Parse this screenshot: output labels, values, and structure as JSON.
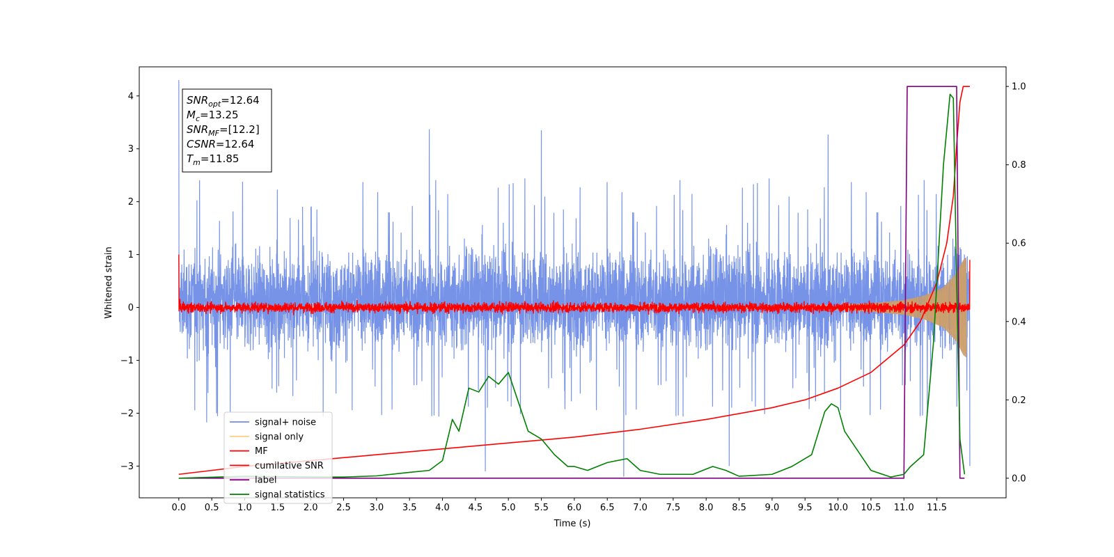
{
  "chart_data": {
    "type": "line",
    "title": "",
    "xlabel": "Time (s)",
    "ylabel": "Whitened strain",
    "xlim": [
      -0.6,
      12.55
    ],
    "ylim": [
      -3.6,
      4.55
    ],
    "y2lim": [
      -0.05,
      1.05
    ],
    "x_ticks": [
      "0.0",
      "0.5",
      "1.0",
      "1.5",
      "2.0",
      "2.5",
      "3.0",
      "3.5",
      "4.0",
      "4.5",
      "5.0",
      "5.5",
      "6.0",
      "6.5",
      "7.0",
      "7.5",
      "8.0",
      "8.5",
      "9.0",
      "9.5",
      "10.0",
      "10.5",
      "11.0",
      "11.5"
    ],
    "y_ticks": [
      "4",
      "3",
      "2",
      "1",
      "0",
      "−1",
      "−2",
      "−3"
    ],
    "y2_ticks": [
      "1.0",
      "0.8",
      "0.6",
      "0.4",
      "0.2",
      "0.0"
    ],
    "grid": false,
    "legend_position": "lower-left",
    "annotation": {
      "lines": [
        {
          "italic": "SNR",
          "sub": "opt",
          "rest": "=12.64"
        },
        {
          "italic": "M",
          "sub": "c",
          "rest": "=13.25"
        },
        {
          "italic": "SNR",
          "sub": "MF",
          "rest": "=[12.2]"
        },
        {
          "italic": "CSNR",
          "sub": "",
          "rest": "=12.64"
        },
        {
          "italic": "T",
          "sub": "m",
          "rest": "=11.85"
        }
      ]
    },
    "series": [
      {
        "name": "signal+ noise",
        "color": "#6f8de6",
        "axis": "left",
        "x_range": [
          0.0,
          12.0
        ],
        "envelope": {
          "low": -1.3,
          "high": 1.6,
          "peak_max": 3.4,
          "peak_min": -3.1
        },
        "spikes": [
          [
            0.0,
            4.3
          ],
          [
            3.8,
            3.37
          ],
          [
            5.5,
            3.35
          ],
          [
            9.85,
            3.27
          ],
          [
            4.65,
            -3.1
          ],
          [
            6.75,
            -3.2
          ],
          [
            8.35,
            -3.0
          ],
          [
            12.0,
            -3.0
          ]
        ]
      },
      {
        "name": "signal only",
        "color": "#f5c56b",
        "axis": "left",
        "x": [
          0.0,
          9.0,
          10.0,
          10.5,
          11.0,
          11.3,
          11.6,
          11.8,
          11.9,
          11.95
        ],
        "amplitude": [
          0.02,
          0.03,
          0.05,
          0.08,
          0.14,
          0.22,
          0.38,
          0.65,
          0.9,
          0.95
        ]
      },
      {
        "name": "MF",
        "color": "#ff0000",
        "axis": "left",
        "x_range": [
          0.0,
          12.0
        ],
        "center": 0.0,
        "spread": 0.12,
        "start_value": 1.0,
        "end_value": 0.9
      },
      {
        "name": "cumilative SNR",
        "color": "#ff0000",
        "axis": "right",
        "x": [
          0.0,
          0.5,
          1.0,
          2.0,
          3.0,
          4.0,
          5.0,
          6.0,
          7.0,
          8.0,
          9.0,
          9.5,
          10.0,
          10.5,
          11.0,
          11.25,
          11.5,
          11.65,
          11.75,
          11.8,
          11.85,
          11.9,
          12.0
        ],
        "y": [
          0.01,
          0.02,
          0.03,
          0.045,
          0.06,
          0.075,
          0.09,
          0.105,
          0.125,
          0.15,
          0.18,
          0.2,
          0.23,
          0.27,
          0.34,
          0.4,
          0.5,
          0.6,
          0.72,
          0.85,
          0.96,
          1.0,
          1.0
        ]
      },
      {
        "name": "label",
        "color": "#800080",
        "axis": "right",
        "x": [
          0.0,
          11.0,
          11.05,
          11.8,
          11.85,
          11.92
        ],
        "y": [
          0.0,
          0.0,
          1.0,
          1.0,
          0.0,
          0.0
        ]
      },
      {
        "name": "signal statistics",
        "color": "#008000",
        "axis": "right",
        "x": [
          0.0,
          1.0,
          2.0,
          2.5,
          3.0,
          3.5,
          3.8,
          4.0,
          4.15,
          4.25,
          4.4,
          4.55,
          4.7,
          4.85,
          5.0,
          5.1,
          5.3,
          5.5,
          5.7,
          5.9,
          6.0,
          6.2,
          6.5,
          6.8,
          7.0,
          7.3,
          7.8,
          8.1,
          8.3,
          8.5,
          9.0,
          9.3,
          9.6,
          9.8,
          9.9,
          10.0,
          10.1,
          10.3,
          10.5,
          10.8,
          11.0,
          11.1,
          11.3,
          11.45,
          11.6,
          11.7,
          11.75,
          11.8,
          11.85,
          11.92
        ],
        "y": [
          0.0,
          0.005,
          0.003,
          0.003,
          0.006,
          0.015,
          0.02,
          0.045,
          0.15,
          0.12,
          0.23,
          0.22,
          0.26,
          0.24,
          0.27,
          0.22,
          0.12,
          0.1,
          0.06,
          0.03,
          0.03,
          0.02,
          0.04,
          0.05,
          0.02,
          0.01,
          0.01,
          0.03,
          0.02,
          0.005,
          0.01,
          0.03,
          0.06,
          0.17,
          0.19,
          0.18,
          0.12,
          0.07,
          0.02,
          0.003,
          0.01,
          0.03,
          0.06,
          0.35,
          0.8,
          0.98,
          0.97,
          0.5,
          0.1,
          0.01
        ]
      }
    ]
  }
}
